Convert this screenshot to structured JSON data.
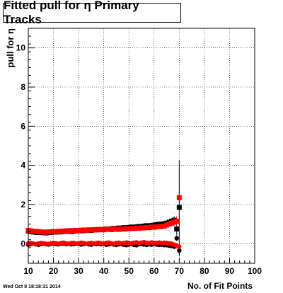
{
  "timestamp": "Wed Oct  8 18:18:31 2014",
  "colors": {
    "series_black": "#000000",
    "series_red": "#ff0000",
    "grid": "#000000"
  },
  "chart_data": {
    "type": "scatter",
    "title": "Fitted pull for η Primary Tracks",
    "xlabel": "No. of Fit Points",
    "ylabel": "pull for η",
    "xlim": [
      10,
      100
    ],
    "ylim": [
      -1,
      11
    ],
    "xticks": [
      10,
      20,
      30,
      40,
      50,
      60,
      70,
      80,
      90,
      100
    ],
    "yticks": [
      0,
      2,
      4,
      6,
      8,
      10
    ],
    "grid": true,
    "series": [
      {
        "marker": "square",
        "color": "#000000",
        "x": [
          10,
          11,
          12,
          13,
          14,
          15,
          16,
          17,
          18,
          19,
          20,
          21,
          22,
          23,
          24,
          25,
          26,
          27,
          28,
          29,
          30,
          31,
          32,
          33,
          34,
          35,
          36,
          37,
          38,
          39,
          40,
          41,
          42,
          43,
          44,
          45,
          46,
          47,
          48,
          49,
          50,
          51,
          52,
          53,
          54,
          55,
          56,
          57,
          58,
          59,
          60,
          61,
          62,
          63,
          64,
          65,
          66,
          67,
          68,
          69,
          70
        ],
        "y": [
          0.65,
          0.62,
          0.6,
          0.58,
          0.57,
          0.58,
          0.56,
          0.55,
          0.57,
          0.58,
          0.6,
          0.59,
          0.61,
          0.6,
          0.62,
          0.63,
          0.65,
          0.62,
          0.64,
          0.66,
          0.65,
          0.67,
          0.66,
          0.68,
          0.7,
          0.68,
          0.7,
          0.72,
          0.71,
          0.73,
          0.72,
          0.75,
          0.74,
          0.76,
          0.78,
          0.77,
          0.8,
          0.79,
          0.82,
          0.8,
          0.83,
          0.85,
          0.84,
          0.86,
          0.88,
          0.87,
          0.9,
          0.92,
          0.91,
          0.93,
          0.95,
          0.97,
          0.99,
          1.0,
          1.02,
          1.05,
          1.1,
          1.15,
          1.2,
          0.75,
          1.85
        ],
        "yerr": [
          0.05,
          0.05,
          0.05,
          0.05,
          0.05,
          0.05,
          0.05,
          0.05,
          0.05,
          0.05,
          0.05,
          0.05,
          0.05,
          0.05,
          0.05,
          0.05,
          0.05,
          0.05,
          0.05,
          0.05,
          0.05,
          0.05,
          0.05,
          0.05,
          0.05,
          0.05,
          0.05,
          0.05,
          0.05,
          0.05,
          0.05,
          0.05,
          0.05,
          0.05,
          0.05,
          0.05,
          0.05,
          0.05,
          0.05,
          0.05,
          0.05,
          0.05,
          0.05,
          0.05,
          0.05,
          0.05,
          0.05,
          0.05,
          0.05,
          0.05,
          0.05,
          0.05,
          0.05,
          0.06,
          0.08,
          0.1,
          0.12,
          0.15,
          0.2,
          0.3,
          2.4
        ]
      },
      {
        "marker": "circle",
        "color": "#000000",
        "x": [
          10,
          11,
          12,
          13,
          14,
          15,
          16,
          17,
          18,
          19,
          20,
          21,
          22,
          23,
          24,
          25,
          26,
          27,
          28,
          29,
          30,
          31,
          32,
          33,
          34,
          35,
          36,
          37,
          38,
          39,
          40,
          41,
          42,
          43,
          44,
          45,
          46,
          47,
          48,
          49,
          50,
          51,
          52,
          53,
          54,
          55,
          56,
          57,
          58,
          59,
          60,
          61,
          62,
          63,
          64,
          65,
          66,
          67,
          68,
          69,
          70
        ],
        "y": [
          -0.05,
          -0.02,
          0.0,
          -0.03,
          -0.05,
          -0.02,
          0.0,
          -0.02,
          -0.04,
          -0.01,
          0.0,
          -0.02,
          -0.03,
          0.0,
          0.01,
          -0.02,
          -0.01,
          -0.03,
          -0.02,
          0.0,
          -0.01,
          -0.04,
          -0.02,
          0.0,
          -0.03,
          -0.05,
          -0.01,
          -0.02,
          0.0,
          -0.03,
          -0.02,
          -0.05,
          -0.03,
          -0.01,
          -0.04,
          -0.06,
          -0.03,
          -0.02,
          -0.05,
          -0.07,
          -0.04,
          -0.02,
          -0.06,
          -0.08,
          -0.03,
          -0.02,
          -0.04,
          -0.06,
          -0.03,
          -0.05,
          -0.02,
          -0.04,
          -0.06,
          -0.05,
          -0.07,
          -0.08,
          -0.1,
          -0.12,
          -0.15,
          0.28,
          -0.35
        ],
        "yerr": [
          0.04,
          0.04,
          0.04,
          0.04,
          0.04,
          0.04,
          0.04,
          0.04,
          0.04,
          0.04,
          0.04,
          0.04,
          0.04,
          0.04,
          0.04,
          0.04,
          0.04,
          0.04,
          0.04,
          0.04,
          0.04,
          0.04,
          0.04,
          0.04,
          0.04,
          0.04,
          0.04,
          0.04,
          0.04,
          0.04,
          0.04,
          0.04,
          0.04,
          0.04,
          0.04,
          0.04,
          0.04,
          0.04,
          0.04,
          0.04,
          0.04,
          0.04,
          0.04,
          0.04,
          0.04,
          0.04,
          0.04,
          0.04,
          0.04,
          0.04,
          0.04,
          0.04,
          0.04,
          0.05,
          0.06,
          0.07,
          0.08,
          0.1,
          0.12,
          0.15,
          0.3
        ]
      },
      {
        "marker": "square",
        "color": "#ff0000",
        "x": [
          10,
          11,
          12,
          13,
          14,
          15,
          16,
          17,
          18,
          19,
          20,
          21,
          22,
          23,
          24,
          25,
          26,
          27,
          28,
          29,
          30,
          31,
          32,
          33,
          34,
          35,
          36,
          37,
          38,
          39,
          40,
          41,
          42,
          43,
          44,
          45,
          46,
          47,
          48,
          49,
          50,
          51,
          52,
          53,
          54,
          55,
          56,
          57,
          58,
          59,
          60,
          61,
          62,
          63,
          64,
          65,
          66,
          67,
          68,
          69,
          70
        ],
        "y": [
          0.68,
          0.66,
          0.64,
          0.63,
          0.62,
          0.6,
          0.6,
          0.58,
          0.6,
          0.61,
          0.62,
          0.6,
          0.63,
          0.64,
          0.63,
          0.66,
          0.64,
          0.67,
          0.66,
          0.68,
          0.66,
          0.69,
          0.7,
          0.67,
          0.71,
          0.7,
          0.72,
          0.7,
          0.73,
          0.72,
          0.71,
          0.74,
          0.73,
          0.72,
          0.75,
          0.74,
          0.73,
          0.76,
          0.75,
          0.77,
          0.76,
          0.78,
          0.77,
          0.8,
          0.78,
          0.81,
          0.8,
          0.83,
          0.82,
          0.85,
          0.84,
          0.86,
          0.88,
          0.87,
          0.9,
          0.95,
          1.0,
          1.05,
          1.1,
          1.15,
          2.35
        ],
        "yerr": [
          0.05,
          0.05,
          0.05,
          0.05,
          0.05,
          0.05,
          0.05,
          0.05,
          0.05,
          0.05,
          0.05,
          0.05,
          0.05,
          0.05,
          0.05,
          0.05,
          0.05,
          0.05,
          0.05,
          0.05,
          0.05,
          0.05,
          0.05,
          0.05,
          0.05,
          0.05,
          0.05,
          0.05,
          0.05,
          0.05,
          0.05,
          0.05,
          0.05,
          0.05,
          0.05,
          0.05,
          0.05,
          0.05,
          0.05,
          0.05,
          0.05,
          0.05,
          0.05,
          0.05,
          0.05,
          0.05,
          0.05,
          0.05,
          0.05,
          0.05,
          0.05,
          0.05,
          0.05,
          0.06,
          0.08,
          0.1,
          0.12,
          0.15,
          0.2,
          0.25,
          0.1
        ]
      },
      {
        "marker": "circle",
        "color": "#ff0000",
        "x": [
          10,
          11,
          12,
          13,
          14,
          15,
          16,
          17,
          18,
          19,
          20,
          21,
          22,
          23,
          24,
          25,
          26,
          27,
          28,
          29,
          30,
          31,
          32,
          33,
          34,
          35,
          36,
          37,
          38,
          39,
          40,
          41,
          42,
          43,
          44,
          45,
          46,
          47,
          48,
          49,
          50,
          51,
          52,
          53,
          54,
          55,
          56,
          57,
          58,
          59,
          60,
          61,
          62,
          63,
          64,
          65,
          66,
          67,
          68,
          69,
          70
        ],
        "y": [
          0.02,
          0.03,
          0.0,
          -0.02,
          0.01,
          0.03,
          0.02,
          0.0,
          -0.01,
          0.02,
          0.04,
          0.02,
          0.0,
          0.03,
          0.05,
          0.02,
          0.0,
          0.03,
          0.04,
          0.01,
          0.02,
          0.05,
          0.03,
          0.0,
          0.02,
          0.04,
          0.01,
          0.03,
          0.05,
          0.02,
          0.0,
          0.04,
          0.06,
          0.02,
          0.0,
          0.03,
          0.05,
          0.01,
          0.03,
          0.06,
          0.04,
          0.02,
          0.05,
          0.07,
          0.03,
          0.06,
          0.08,
          0.05,
          0.03,
          0.07,
          0.05,
          0.04,
          0.06,
          0.03,
          0.05,
          0.04,
          0.02,
          0.0,
          -0.05,
          -0.1,
          -0.15
        ],
        "yerr": [
          0.04,
          0.04,
          0.04,
          0.04,
          0.04,
          0.04,
          0.04,
          0.04,
          0.04,
          0.04,
          0.04,
          0.04,
          0.04,
          0.04,
          0.04,
          0.04,
          0.04,
          0.04,
          0.04,
          0.04,
          0.04,
          0.04,
          0.04,
          0.04,
          0.04,
          0.04,
          0.04,
          0.04,
          0.04,
          0.04,
          0.04,
          0.04,
          0.04,
          0.04,
          0.04,
          0.04,
          0.04,
          0.04,
          0.04,
          0.04,
          0.04,
          0.04,
          0.04,
          0.04,
          0.04,
          0.04,
          0.04,
          0.04,
          0.04,
          0.04,
          0.04,
          0.04,
          0.04,
          0.05,
          0.06,
          0.07,
          0.08,
          0.1,
          0.12,
          0.15,
          0.1
        ]
      }
    ]
  }
}
